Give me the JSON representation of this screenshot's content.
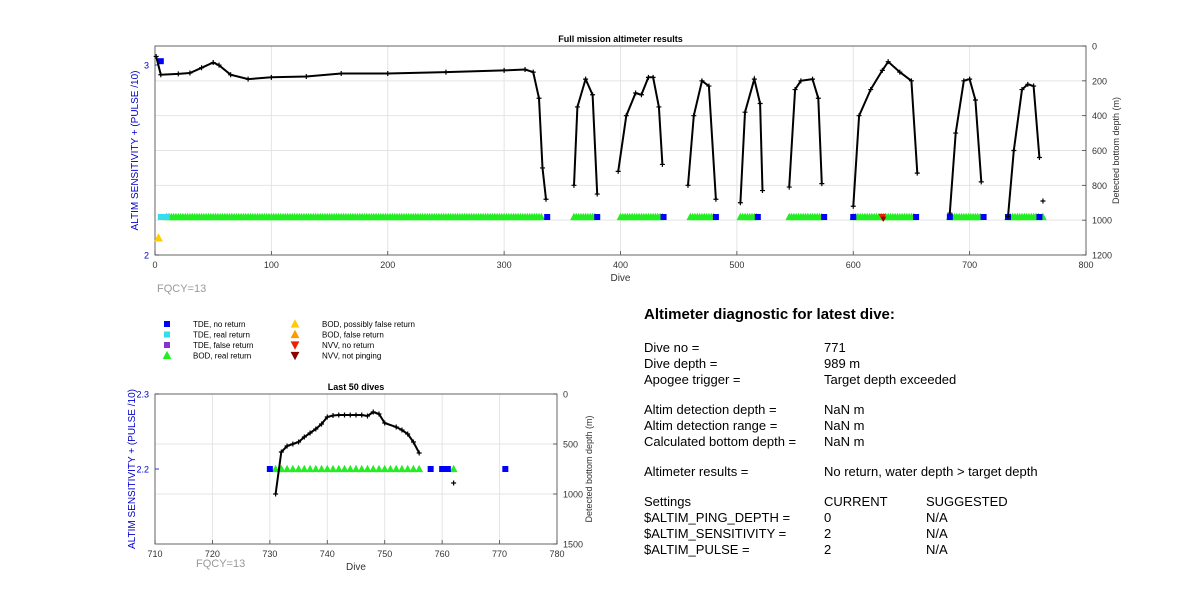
{
  "colors": {
    "tde_no_return": "#0000ff",
    "tde_real_return": "#33ddee",
    "tde_false_return": "#8833cc",
    "bod_real_return": "#22ee22",
    "bod_possibly_false": "#ffcc00",
    "bod_false": "#ff9900",
    "nvv_no_return": "#ee2200",
    "nvv_not_pinging": "#8b0000",
    "axis_left": "#0000cc",
    "grid": "#e4e4e4",
    "fqcy_text": "#999999"
  },
  "chart_data": [
    {
      "type": "scatter",
      "title": "Full mission altimeter results",
      "xlabel": "Dive",
      "ylabel_left": "ALTIM SENSITIVITY + (PULSE /10)",
      "ylabel_right": "Detected bottom depth (m)",
      "xlim": [
        0,
        800
      ],
      "ylim_left": [
        2,
        3.1
      ],
      "ylim_right": [
        1200,
        0
      ],
      "xticks": [
        "0",
        "100",
        "200",
        "300",
        "400",
        "500",
        "600",
        "700",
        "800"
      ],
      "yticks_left": [
        "2",
        "3"
      ],
      "yticks_right": [
        "0",
        "200",
        "400",
        "600",
        "800",
        "1000",
        "1200"
      ],
      "grid": true,
      "annotation": "FQCY=13",
      "depth_segments": [
        [
          [
            1,
            60
          ],
          [
            5,
            165
          ],
          [
            20,
            160
          ],
          [
            30,
            155
          ],
          [
            40,
            125
          ],
          [
            50,
            95
          ],
          [
            55,
            110
          ],
          [
            65,
            165
          ],
          [
            80,
            190
          ],
          [
            100,
            180
          ],
          [
            130,
            175
          ],
          [
            160,
            158
          ],
          [
            200,
            158
          ],
          [
            250,
            150
          ],
          [
            300,
            140
          ],
          [
            318,
            135
          ],
          [
            325,
            150
          ],
          [
            330,
            300
          ],
          [
            333,
            700
          ],
          [
            336,
            880
          ]
        ],
        [
          [
            360,
            800
          ],
          [
            363,
            350
          ],
          [
            370,
            190
          ],
          [
            376,
            280
          ],
          [
            380,
            850
          ]
        ],
        [
          [
            398,
            720
          ],
          [
            405,
            400
          ],
          [
            413,
            270
          ],
          [
            418,
            280
          ],
          [
            424,
            180
          ],
          [
            428,
            180
          ],
          [
            433,
            350
          ],
          [
            436,
            680
          ]
        ],
        [
          [
            458,
            800
          ],
          [
            463,
            400
          ],
          [
            470,
            200
          ],
          [
            476,
            230
          ],
          [
            482,
            880
          ]
        ],
        [
          [
            503,
            900
          ],
          [
            507,
            380
          ],
          [
            515,
            190
          ],
          [
            520,
            330
          ],
          [
            522,
            830
          ]
        ],
        [
          [
            545,
            810
          ],
          [
            550,
            250
          ],
          [
            555,
            200
          ],
          [
            565,
            190
          ],
          [
            570,
            300
          ],
          [
            573,
            790
          ]
        ],
        [
          [
            600,
            920
          ],
          [
            605,
            400
          ],
          [
            615,
            250
          ],
          [
            625,
            140
          ],
          [
            630,
            90
          ],
          [
            640,
            150
          ],
          [
            650,
            200
          ],
          [
            655,
            730
          ]
        ],
        [
          [
            683,
            960
          ],
          [
            688,
            500
          ],
          [
            695,
            200
          ],
          [
            700,
            190
          ],
          [
            705,
            310
          ],
          [
            710,
            780
          ]
        ],
        [
          [
            733,
            980
          ],
          [
            738,
            600
          ],
          [
            745,
            250
          ],
          [
            750,
            220
          ],
          [
            755,
            230
          ],
          [
            760,
            640
          ]
        ]
      ],
      "depth_points": [
        [
          763,
          890
        ]
      ],
      "tde_no_return": [
        [
          5,
          3.02
        ],
        [
          337,
          2.2
        ],
        [
          380,
          2.2
        ],
        [
          437,
          2.2
        ],
        [
          482,
          2.2
        ],
        [
          518,
          2.2
        ],
        [
          575,
          2.2
        ],
        [
          600,
          2.2
        ],
        [
          654,
          2.2
        ],
        [
          683,
          2.2
        ],
        [
          712,
          2.2
        ],
        [
          733,
          2.2
        ],
        [
          760,
          2.2
        ]
      ],
      "tde_real_return": [
        [
          5,
          2.2
        ],
        [
          10,
          2.2
        ]
      ],
      "bod_real_return_ranges": [
        [
          10,
          333
        ],
        [
          360,
          378
        ],
        [
          400,
          436
        ],
        [
          460,
          480
        ],
        [
          503,
          518
        ],
        [
          545,
          573
        ],
        [
          600,
          652
        ],
        [
          683,
          710
        ],
        [
          733,
          760
        ]
      ],
      "bod_real_return_points": [
        [
          763,
          2.2
        ]
      ],
      "bod_possibly_false": [
        [
          3,
          2.09
        ]
      ],
      "bod_false": [],
      "nvv_no_return": [
        [
          625,
          2.2
        ]
      ],
      "nvv_not_pinging": [
        [
          626,
          2.19
        ]
      ]
    },
    {
      "type": "scatter",
      "title": "Last 50 dives",
      "xlabel": "Dive",
      "ylabel_left": "ALTIM SENSITIVITY + (PULSE /10)",
      "ylabel_right": "Detected bottom depth (m)",
      "xlim": [
        710,
        780
      ],
      "ylim_left": [
        2.1,
        2.3
      ],
      "ylim_right": [
        1500,
        0
      ],
      "xticks": [
        "710",
        "720",
        "730",
        "740",
        "750",
        "760",
        "770",
        "780"
      ],
      "yticks_left": [
        "2.2",
        "2.3"
      ],
      "yticks_right": [
        "0",
        "500",
        "1000",
        "1500"
      ],
      "grid": true,
      "annotation": "FQCY=13",
      "depth_series": [
        [
          731,
          1000
        ],
        [
          732,
          580
        ],
        [
          733,
          520
        ],
        [
          734,
          500
        ],
        [
          735,
          480
        ],
        [
          736,
          430
        ],
        [
          737,
          390
        ],
        [
          738,
          350
        ],
        [
          739,
          300
        ],
        [
          740,
          230
        ],
        [
          741,
          215
        ],
        [
          742,
          210
        ],
        [
          743,
          210
        ],
        [
          744,
          210
        ],
        [
          745,
          210
        ],
        [
          746,
          210
        ],
        [
          747,
          220
        ],
        [
          748,
          180
        ],
        [
          749,
          200
        ],
        [
          750,
          290
        ],
        [
          752,
          330
        ],
        [
          753,
          360
        ],
        [
          754,
          400
        ],
        [
          755,
          480
        ],
        [
          756,
          590
        ]
      ],
      "depth_points": [
        [
          762,
          890
        ]
      ],
      "tde_no_return": [
        [
          730,
          2.2
        ],
        [
          758,
          2.2
        ],
        [
          760,
          2.2
        ],
        [
          761,
          2.2
        ],
        [
          771,
          2.2
        ]
      ],
      "bod_real_return_range": [
        731,
        756
      ],
      "bod_real_return_points": [
        [
          762,
          2.2
        ]
      ]
    }
  ],
  "legend": {
    "left": [
      {
        "label": "TDE, no return",
        "marker": "square",
        "color_key": "tde_no_return"
      },
      {
        "label": "TDE, real return",
        "marker": "square",
        "color_key": "tde_real_return"
      },
      {
        "label": "TDE, false return",
        "marker": "square",
        "color_key": "tde_false_return"
      },
      {
        "label": "BOD, real return",
        "marker": "triangle-up",
        "color_key": "bod_real_return"
      }
    ],
    "right": [
      {
        "label": "BOD, possibly false return",
        "marker": "triangle-up",
        "color_key": "bod_possibly_false"
      },
      {
        "label": "BOD, false return",
        "marker": "triangle-up",
        "color_key": "bod_false"
      },
      {
        "label": "NVV, no return",
        "marker": "triangle-down",
        "color_key": "nvv_no_return"
      },
      {
        "label": "NVV, not pinging",
        "marker": "triangle-down",
        "color_key": "nvv_not_pinging"
      }
    ]
  },
  "diagnostic": {
    "title": "Altimeter diagnostic for latest dive:",
    "dive_no_label": "Dive no =",
    "dive_no_value": "771",
    "dive_depth_label": "Dive depth =",
    "dive_depth_value": "989 m",
    "apogee_label": "Apogee trigger =",
    "apogee_value": "Target depth exceeded",
    "det_depth_label": "Altim detection depth =",
    "det_depth_value": "NaN m",
    "det_range_label": "Altim detection range =",
    "det_range_value": "NaN m",
    "calc_depth_label": "Calculated bottom depth =",
    "calc_depth_value": "NaN m",
    "results_label": "Altimeter results =",
    "results_value": "No return, water depth > target depth",
    "settings_label": "Settings",
    "current_label": "CURRENT",
    "suggested_label": "SUGGESTED",
    "ping_depth_label": "$ALTIM_PING_DEPTH =",
    "ping_depth_current": "0",
    "ping_depth_suggested": "N/A",
    "sensitivity_label": "$ALTIM_SENSITIVITY =",
    "sensitivity_current": "2",
    "sensitivity_suggested": "N/A",
    "pulse_label": "$ALTIM_PULSE =",
    "pulse_current": "2",
    "pulse_suggested": "N/A"
  }
}
